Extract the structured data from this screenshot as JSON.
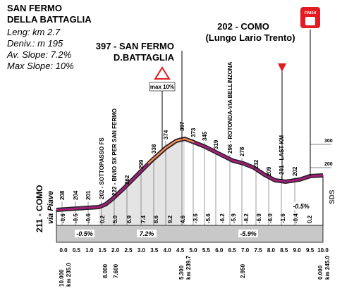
{
  "title": [
    "SAN FERMO",
    "DELLA BATTAGLIA"
  ],
  "stats": [
    "Leng: km 2.7",
    "Deniv.: m 195",
    "Av. Slope: 7.2%",
    "Max Slope: 10%"
  ],
  "summit": [
    "397 - SAN FERMO",
    "D.BATTAGLIA"
  ],
  "finish": {
    "lines": [
      "202 - COMO",
      "(Lungo Lario Trento)"
    ],
    "icon": "FINISH"
  },
  "max_slope_sign": "max 10%",
  "start": [
    "211 - COMO",
    "via Piave"
  ],
  "altitudes": [
    "208",
    "204",
    "201",
    "202 - SOTTOPASSO FS",
    "222 - BIVIO SX PER SAN FERMO",
    "262",
    "299",
    "338",
    "374",
    "397",
    "373",
    "345",
    "319",
    "296 - ROTONDA-VIA BELLINZONA",
    "278",
    "232",
    "209",
    "201 - LAST KM",
    "202"
  ],
  "scale": [
    "300",
    "200"
  ],
  "slopes": [
    "-0.6",
    "-0.5",
    "-0.6",
    "0.2",
    "5.0",
    "6.9",
    "7.4",
    "8.6",
    "9.2",
    "4.6",
    "-3.6",
    "-5.6",
    "-6.2",
    "-5.9",
    "-8.2",
    "-6.9",
    "-6.0",
    "-1.6",
    "-0.4",
    "0.2"
  ],
  "averages": [
    "-0.5%",
    "7.2%",
    "-5.9%",
    "-0.5%"
  ],
  "km": [
    "0.0",
    "0.5",
    "1.0",
    "1.5",
    "2.0",
    "2.5",
    "3.0",
    "3.5",
    "4.0",
    "4.5",
    "5.0",
    "5.5",
    "6.0",
    "6.5",
    "7.0",
    "7.5",
    "8.0",
    "8.5",
    "9.0",
    "9.5",
    "10.0"
  ],
  "distances": [
    "10.000",
    "km 235.0",
    "8.000",
    "7.600",
    "5.300",
    "km 239.7",
    "2.950",
    "0.000",
    "km 245.0"
  ],
  "logo": "SDS"
}
